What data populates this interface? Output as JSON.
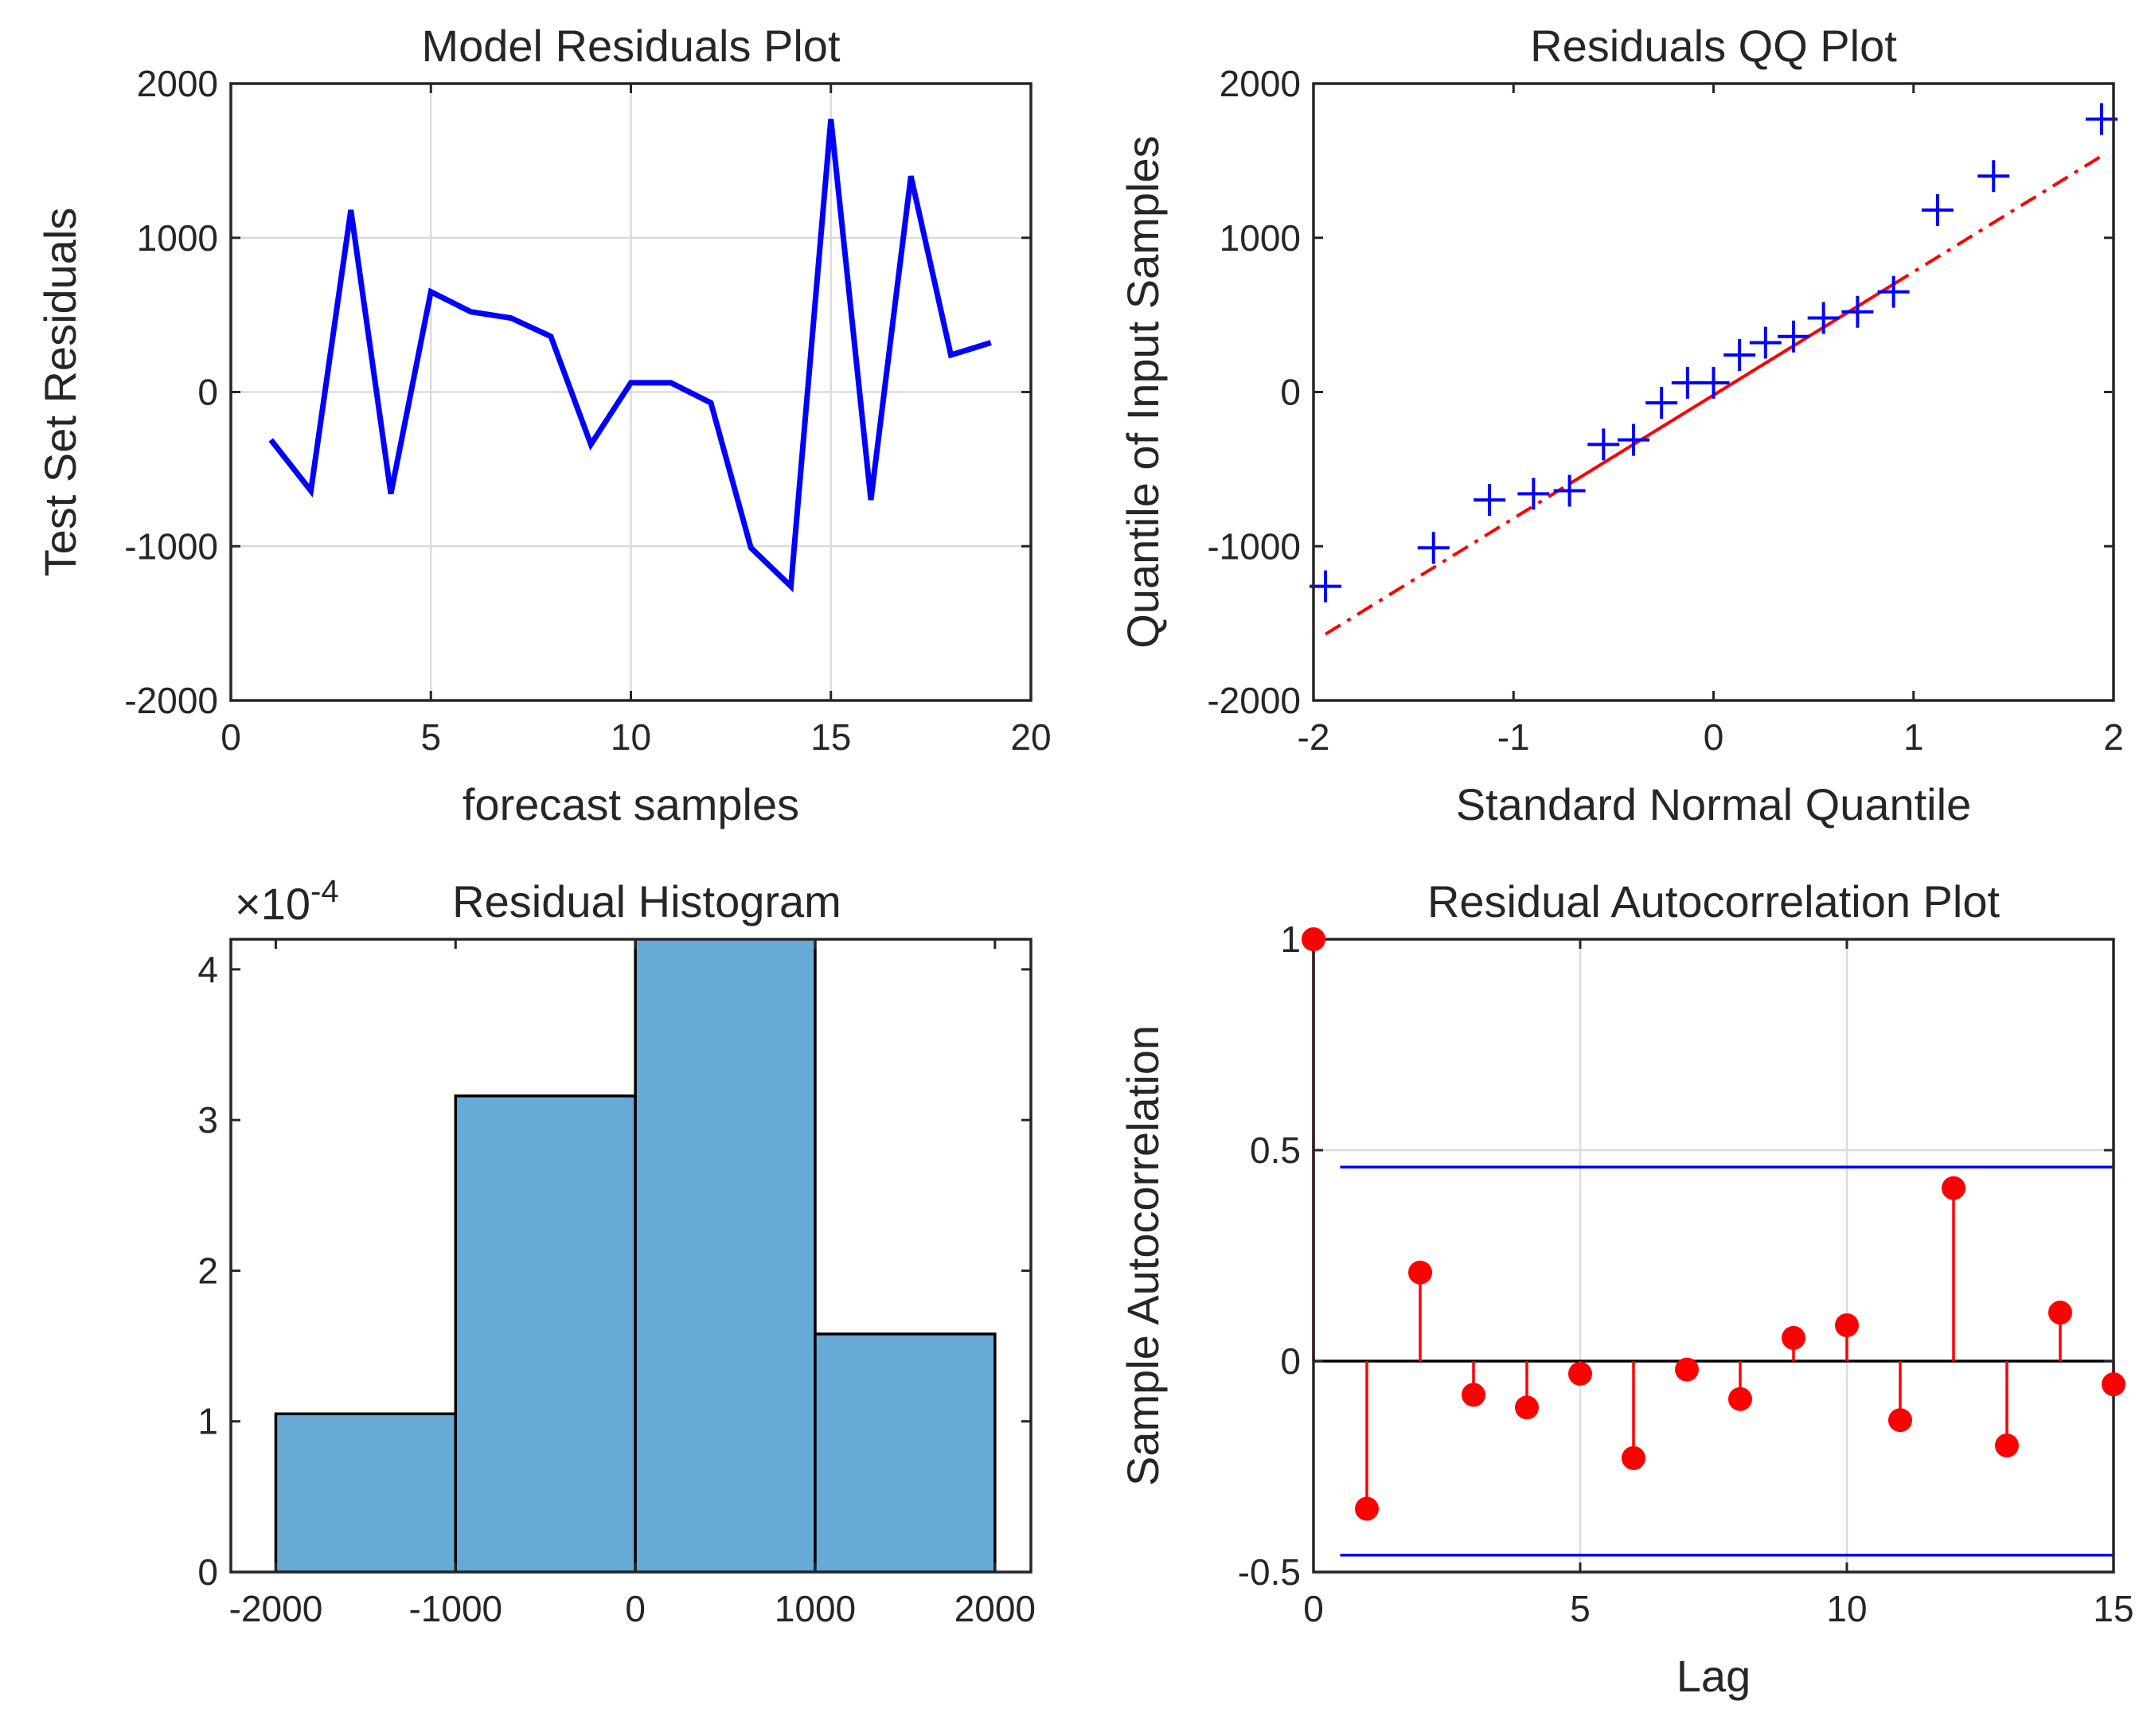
{
  "chart_data": [
    {
      "type": "line",
      "title": "Model Residuals Plot",
      "xlabel": "forecast samples",
      "ylabel": "Test Set Residuals",
      "xlim": [
        0,
        20
      ],
      "ylim": [
        -2000,
        2000
      ],
      "xticks": [
        0,
        5,
        10,
        15,
        20
      ],
      "yticks": [
        -2000,
        -1000,
        0,
        1000,
        2000
      ],
      "x_tick_labels": [
        "0",
        "5",
        "10",
        "15",
        "20"
      ],
      "y_tick_labels": [
        "-2000",
        "-1000",
        "0",
        "1000",
        "2000"
      ],
      "grid": true,
      "color": "#0000ff",
      "x": [
        1,
        2,
        3,
        4,
        5,
        6,
        7,
        8,
        9,
        10,
        11,
        12,
        13,
        14,
        15,
        16,
        17,
        18,
        19
      ],
      "values": [
        -310,
        -640,
        1180,
        -660,
        650,
        520,
        480,
        360,
        -340,
        60,
        60,
        -70,
        -1010,
        -1260,
        1770,
        -700,
        1400,
        240,
        320
      ]
    },
    {
      "type": "scatter",
      "title": "Residuals QQ Plot",
      "xlabel": "Standard Normal Quantile",
      "ylabel": "Quantile of Input Samples",
      "xlim": [
        -2,
        2
      ],
      "ylim": [
        -2000,
        2000
      ],
      "xticks": [
        -2,
        -1,
        0,
        1,
        2
      ],
      "yticks": [
        -2000,
        -1000,
        0,
        1000,
        2000
      ],
      "x_tick_labels": [
        "-2",
        "-1",
        "0",
        "1",
        "2"
      ],
      "y_tick_labels": [
        "-2000",
        "-1000",
        "0",
        "1000",
        "2000"
      ],
      "grid": false,
      "marker_color": "#0000ff",
      "line_color": "#ff0000",
      "x": [
        -1.94,
        -1.4,
        -1.12,
        -0.9,
        -0.72,
        -0.55,
        -0.4,
        -0.26,
        -0.13,
        0.0,
        0.13,
        0.26,
        0.4,
        0.55,
        0.72,
        0.9,
        1.12,
        1.4,
        1.94
      ],
      "y": [
        -1260,
        -1010,
        -700,
        -660,
        -640,
        -340,
        -310,
        -70,
        60,
        60,
        240,
        320,
        360,
        480,
        520,
        650,
        1180,
        1400,
        1770
      ],
      "reference_line": {
        "x": [
          -1.94,
          1.94
        ],
        "y": [
          -1570,
          1530
        ],
        "solid_range_x": [
          -0.72,
          0.9
        ]
      }
    },
    {
      "type": "bar",
      "title": "Residual Histogram",
      "exponent_label": "×10",
      "exponent_power": "-4",
      "xlim": [
        -2250,
        2200
      ],
      "ylim": [
        0,
        4.2
      ],
      "xticks": [
        -2000,
        -1000,
        0,
        1000,
        2000
      ],
      "yticks": [
        0,
        1,
        2,
        3,
        4
      ],
      "x_tick_labels": [
        "-2000",
        "-1000",
        "0",
        "1000",
        "2000"
      ],
      "y_tick_labels": [
        "0",
        "1",
        "2",
        "3",
        "4"
      ],
      "grid": false,
      "color": "#67a9d7",
      "bin_edges": [
        -2000,
        -1000,
        0,
        1000,
        2000
      ],
      "values": [
        1.05,
        3.16,
        4.21,
        1.58
      ]
    },
    {
      "type": "stem",
      "title": "Residual Autocorrelation Plot",
      "xlabel": "Lag",
      "ylabel": "Sample Autocorrelation",
      "xlim": [
        0,
        15
      ],
      "ylim": [
        -0.5,
        1
      ],
      "xticks": [
        0,
        5,
        10,
        15
      ],
      "yticks": [
        -0.5,
        0,
        0.5,
        1
      ],
      "x_tick_labels": [
        "0",
        "5",
        "10",
        "15"
      ],
      "y_tick_labels": [
        "-0.5",
        "0",
        "0.5",
        "1"
      ],
      "grid": true,
      "color": "#ff0000",
      "bound_color": "#0000ff",
      "lags": [
        0,
        1,
        2,
        3,
        4,
        5,
        6,
        7,
        8,
        9,
        10,
        11,
        12,
        13,
        14,
        15
      ],
      "values": [
        1.0,
        -0.35,
        0.21,
        -0.08,
        -0.11,
        -0.03,
        -0.23,
        -0.02,
        -0.09,
        0.055,
        0.085,
        -0.14,
        0.41,
        -0.2,
        0.115,
        -0.055
      ],
      "confidence_bounds": [
        0.46,
        -0.46
      ],
      "bounds_x_range": [
        0.5,
        15
      ]
    }
  ]
}
